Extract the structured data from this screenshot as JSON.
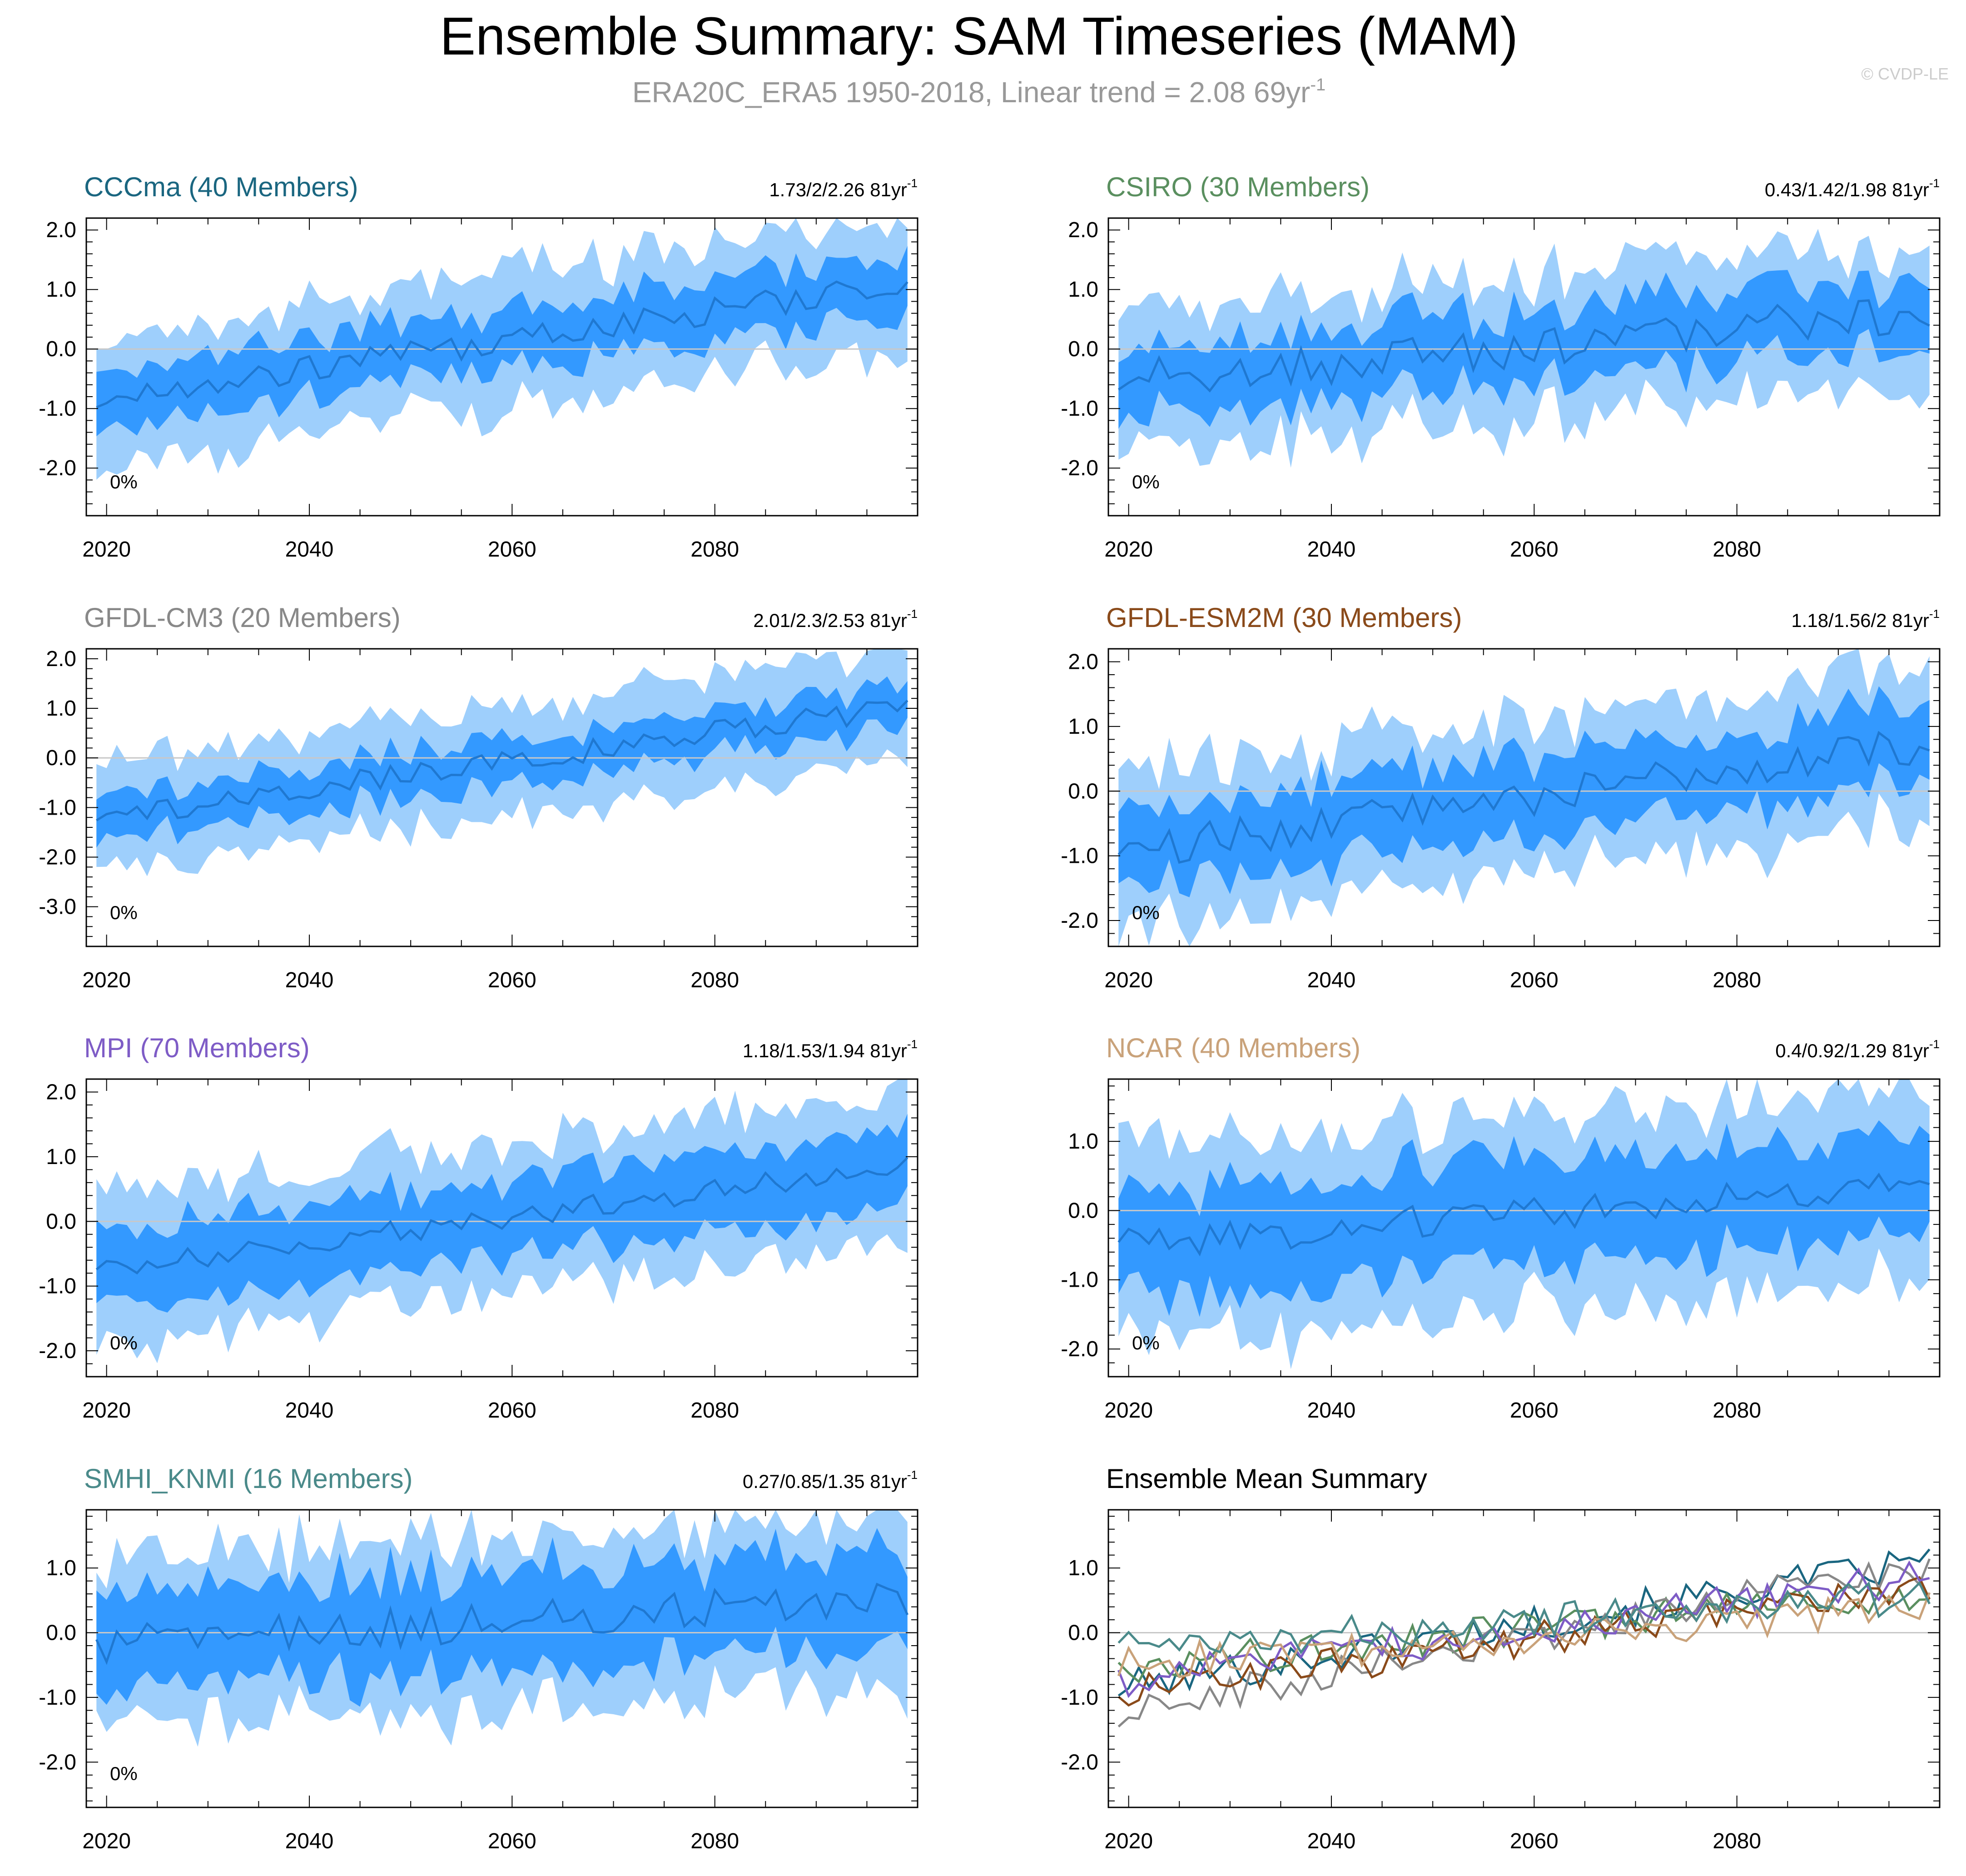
{
  "title": "Ensemble Summary: SAM Timeseries (MAM)",
  "subtitle": {
    "text": "ERA20C_ERA5 1950-2018, Linear trend = 2.08 69yr",
    "superscript": "-1"
  },
  "watermark": "© CVDP-LE",
  "colors": {
    "title": "#000000",
    "subtitle": "#999999",
    "watermark": "#cccccc",
    "band_outer": "#9ecffc",
    "band_inner": "#3399ff",
    "mean_line": "#1f78d1",
    "zero_line": "#c8c8c8"
  },
  "chart_data": [
    {
      "type": "area",
      "model": "CCCma",
      "title": "CCCma (40 Members)",
      "title_color": "#1a6680",
      "trend": {
        "text": "1.73/2/2.26 81yr",
        "superscript": "-1"
      },
      "percent_label": "0%",
      "xlim": [
        2018,
        2100
      ],
      "ylim": [
        -2.8,
        2.2
      ],
      "yticks": [
        -2,
        -1,
        0,
        1,
        2
      ],
      "ytick_labels": [
        "-2.0",
        "-1.0",
        "0.0",
        "1.0",
        "2.0"
      ],
      "xticks": [
        2020,
        2040,
        2060,
        2080
      ],
      "xtick_labels": [
        "2020",
        "2040",
        "2060",
        "2080"
      ],
      "mean_start": -0.85,
      "mean_end": 1.1,
      "inner_half_width": 0.5,
      "outer_half_width": 1.1,
      "variability": 0.25
    },
    {
      "type": "area",
      "model": "CSIRO",
      "title": "CSIRO (30 Members)",
      "title_color": "#5a8f5f",
      "trend": {
        "text": "0.43/1.42/1.98 81yr",
        "superscript": "-1"
      },
      "percent_label": "0%",
      "xlim": [
        2018,
        2100
      ],
      "ylim": [
        -2.8,
        2.2
      ],
      "yticks": [
        -2,
        -1,
        0,
        1,
        2
      ],
      "ytick_labels": [
        "-2.0",
        "-1.0",
        "0.0",
        "1.0",
        "2.0"
      ],
      "xticks": [
        2020,
        2040,
        2060,
        2080
      ],
      "xtick_labels": [
        "2020",
        "2040",
        "2060",
        "2080"
      ],
      "mean_start": -0.55,
      "mean_end": 0.65,
      "inner_half_width": 0.6,
      "outer_half_width": 1.2,
      "variability": 0.35
    },
    {
      "type": "area",
      "model": "GFDL-CM3",
      "title": "GFDL-CM3 (20 Members)",
      "title_color": "#888888",
      "trend": {
        "text": "2.01/2.3/2.53 81yr",
        "superscript": "-1"
      },
      "percent_label": "0%",
      "xlim": [
        2018,
        2100
      ],
      "ylim": [
        -3.8,
        2.2
      ],
      "yticks": [
        -3,
        -2,
        -1,
        0,
        1,
        2
      ],
      "ytick_labels": [
        "-3.0",
        "-2.0",
        "-1.0",
        "0.0",
        "1.0",
        "2.0"
      ],
      "xticks": [
        2020,
        2040,
        2060,
        2080
      ],
      "xtick_labels": [
        "2020",
        "2040",
        "2060",
        "2080"
      ],
      "mean_start": -1.2,
      "mean_end": 1.05,
      "inner_half_width": 0.45,
      "outer_half_width": 1.1,
      "variability": 0.25
    },
    {
      "type": "area",
      "model": "GFDL-ESM2M",
      "title": "GFDL-ESM2M (30 Members)",
      "title_color": "#8a4a1a",
      "trend": {
        "text": "1.18/1.56/2 81yr",
        "superscript": "-1"
      },
      "percent_label": "0%",
      "xlim": [
        2018,
        2100
      ],
      "ylim": [
        -2.4,
        2.2
      ],
      "yticks": [
        -2,
        -1,
        0,
        1,
        2
      ],
      "ytick_labels": [
        "-2.0",
        "-1.0",
        "0.0",
        "1.0",
        "2.0"
      ],
      "xticks": [
        2020,
        2040,
        2060,
        2080
      ],
      "xtick_labels": [
        "2020",
        "2040",
        "2060",
        "2080"
      ],
      "mean_start": -0.95,
      "mean_end": 0.75,
      "inner_half_width": 0.6,
      "outer_half_width": 1.2,
      "variability": 0.3
    },
    {
      "type": "area",
      "model": "MPI",
      "title": "MPI (70 Members)",
      "title_color": "#7e5cc6",
      "trend": {
        "text": "1.18/1.53/1.94 81yr",
        "superscript": "-1"
      },
      "percent_label": "0%",
      "xlim": [
        2018,
        2100
      ],
      "ylim": [
        -2.4,
        2.2
      ],
      "yticks": [
        -2,
        -1,
        0,
        1,
        2
      ],
      "ytick_labels": [
        "-2.0",
        "-1.0",
        "0.0",
        "1.0",
        "2.0"
      ],
      "xticks": [
        2020,
        2040,
        2060,
        2080
      ],
      "xtick_labels": [
        "2020",
        "2040",
        "2060",
        "2080"
      ],
      "mean_start": -0.75,
      "mean_end": 0.85,
      "inner_half_width": 0.6,
      "outer_half_width": 1.2,
      "variability": 0.18
    },
    {
      "type": "area",
      "model": "NCAR",
      "title": "NCAR (40 Members)",
      "title_color": "#c9a27a",
      "trend": {
        "text": "0.4/0.92/1.29 81yr",
        "superscript": "-1"
      },
      "percent_label": "0%",
      "xlim": [
        2018,
        2100
      ],
      "ylim": [
        -2.4,
        1.9
      ],
      "yticks": [
        -2,
        -1,
        0,
        1
      ],
      "ytick_labels": [
        "-2.0",
        "-1.0",
        "0.0",
        "1.0"
      ],
      "xticks": [
        2020,
        2040,
        2060,
        2080
      ],
      "xtick_labels": [
        "2020",
        "2040",
        "2060",
        "2080"
      ],
      "mean_start": -0.5,
      "mean_end": 0.4,
      "inner_half_width": 0.75,
      "outer_half_width": 1.4,
      "variability": 0.25
    },
    {
      "type": "area",
      "model": "SMHI_KNMI",
      "title": "SMHI_KNMI (16 Members)",
      "title_color": "#4a8a8a",
      "trend": {
        "text": "0.27/0.85/1.35 81yr",
        "superscript": "-1"
      },
      "percent_label": "0%",
      "xlim": [
        2018,
        2100
      ],
      "ylim": [
        -2.7,
        1.9
      ],
      "yticks": [
        -2,
        -1,
        0,
        1
      ],
      "ytick_labels": [
        "-2.0",
        "-1.0",
        "0.0",
        "1.0"
      ],
      "xticks": [
        2020,
        2040,
        2060,
        2080
      ],
      "xtick_labels": [
        "2020",
        "2040",
        "2060",
        "2080"
      ],
      "mean_start": -0.2,
      "mean_end": 0.55,
      "inner_half_width": 0.75,
      "outer_half_width": 1.3,
      "variability": 0.3
    },
    {
      "type": "line",
      "model": "Ensemble Mean",
      "title": "Ensemble Mean Summary",
      "title_color": "#000000",
      "xlim": [
        2018,
        2100
      ],
      "ylim": [
        -2.7,
        1.9
      ],
      "yticks": [
        -2,
        -1,
        0,
        1
      ],
      "ytick_labels": [
        "-2.0",
        "-1.0",
        "0.0",
        "1.0"
      ],
      "xticks": [
        2020,
        2040,
        2060,
        2080
      ],
      "xtick_labels": [
        "2020",
        "2040",
        "2060",
        "2080"
      ],
      "series": [
        {
          "name": "CCCma",
          "color": "#1a6680",
          "start": -0.85,
          "end": 1.1
        },
        {
          "name": "CSIRO",
          "color": "#5a8f5f",
          "start": -0.55,
          "end": 0.65
        },
        {
          "name": "GFDL-CM3",
          "color": "#888888",
          "start": -1.2,
          "end": 1.05
        },
        {
          "name": "GFDL-ESM2M",
          "color": "#8a4a1a",
          "start": -0.95,
          "end": 0.75
        },
        {
          "name": "MPI",
          "color": "#7e5cc6",
          "start": -0.75,
          "end": 0.85
        },
        {
          "name": "NCAR",
          "color": "#c9a27a",
          "start": -0.5,
          "end": 0.4
        },
        {
          "name": "SMHI_KNMI",
          "color": "#4a8a8a",
          "start": -0.2,
          "end": 0.55
        }
      ]
    }
  ]
}
